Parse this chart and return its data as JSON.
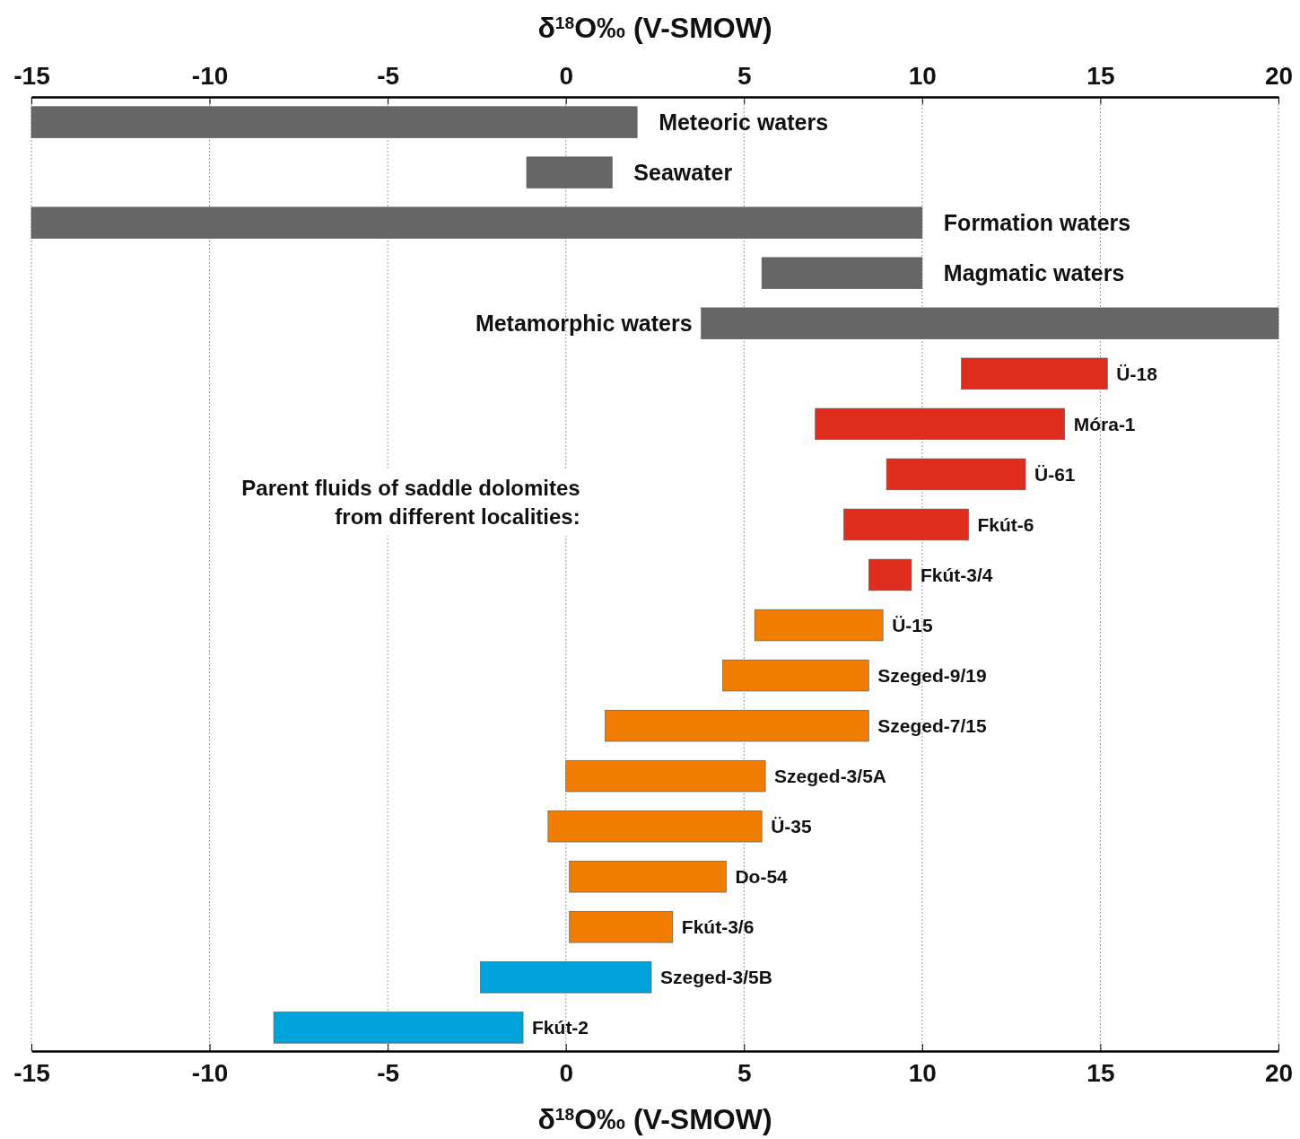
{
  "chart_data": {
    "type": "bar",
    "orientation": "horizontal",
    "xlabel": "δ$^{18}$O‰ (V-SMOW)",
    "x2label": "δ$^{18}$O‰ (V-SMOW)",
    "xlim": [
      -15,
      20
    ],
    "xticks": [
      -15,
      -10,
      -5,
      0,
      5,
      10,
      15,
      20
    ],
    "x2lim": [
      -15,
      20
    ],
    "x2ticks": [
      -15,
      -10,
      -5,
      0,
      5,
      10,
      15,
      20
    ],
    "grid": "x",
    "categories": [
      "Meteoric waters",
      "Seawater",
      "Formation waters",
      "Magmatic waters",
      "Metamorphic waters",
      "Ü-18",
      "Móra-1",
      "Ü-61",
      "Fkút-6",
      "Fkút-3/4",
      "Ü-15",
      "Szeged-9/19",
      "Szeged-7/15",
      "Szeged-3/5A",
      "Ü-35",
      "Do-54",
      "Fkút-3/6",
      "Szeged-3/5B",
      "Fkút-2"
    ],
    "base": [
      -15,
      -1.1,
      -15,
      5.5,
      3.8,
      11.1,
      7,
      9,
      7.8,
      8.5,
      5.3,
      4.4,
      1.1,
      0,
      -0.5,
      0.1,
      0.1,
      -2.4,
      -8.2
    ],
    "values": [
      17,
      2.4,
      25,
      4.5,
      16.2,
      4.1,
      7,
      3.9,
      3.5,
      1.2,
      3.6,
      4.1,
      7.4,
      5.6,
      6,
      4.4,
      2.9,
      4.8,
      7
    ],
    "colors": [
      "#666666",
      "#666666",
      "#666666",
      "#666666",
      "#666666",
      "#e02e1e",
      "#e02e1e",
      "#e02e1e",
      "#e02e1e",
      "#e02e1e",
      "#f07d00",
      "#f07d00",
      "#f07d00",
      "#f07d00",
      "#f07d00",
      "#f07d00",
      "#f07d00",
      "#00a3d9",
      "#00a3d9"
    ],
    "annotations": [
      "Parent fluids of saddle dolomites\nfrom different localities:"
    ]
  }
}
